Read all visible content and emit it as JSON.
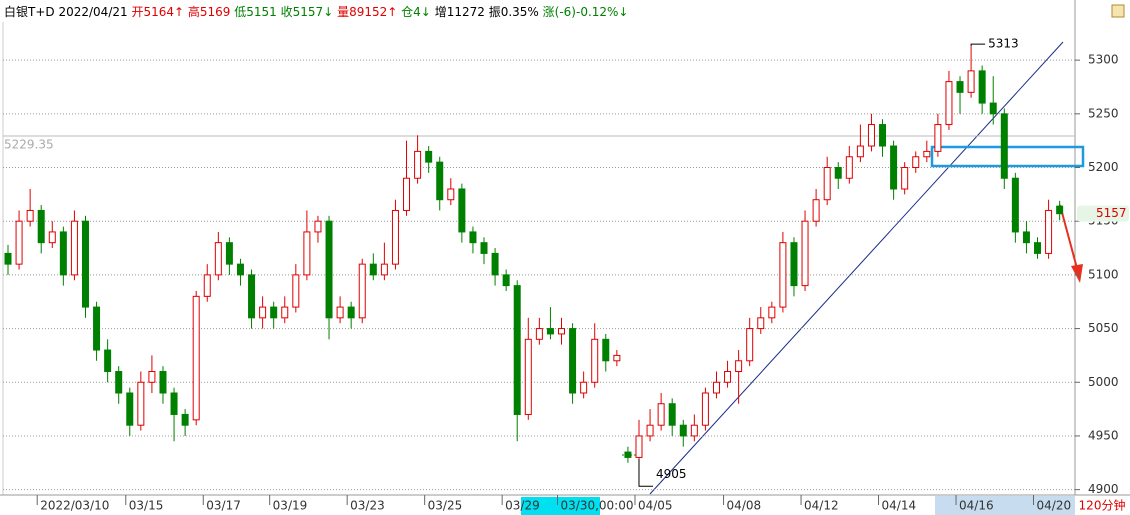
{
  "header": {
    "symbol": "白银T+D",
    "date": "2022/04/21",
    "items": [
      {
        "text": "开5164↑",
        "color": "#e00000"
      },
      {
        "text": "高5169",
        "color": "#e00000"
      },
      {
        "text": "低5151",
        "color": "#008000"
      },
      {
        "text": "收5157↓",
        "color": "#008000"
      },
      {
        "text": "量89152↑",
        "color": "#e00000"
      },
      {
        "text": "仓4↓",
        "color": "#008000"
      },
      {
        "text": "增11272",
        "color": "#000000"
      },
      {
        "text": "振0.35%",
        "color": "#000000"
      },
      {
        "text": "涨(-6)-0.12%↓",
        "color": "#008000"
      }
    ]
  },
  "chart_data": {
    "type": "candlestick",
    "period": "120分钟",
    "open": [
      5120,
      5110,
      5150,
      5160,
      5130,
      5140,
      5100,
      5150,
      5070,
      5030,
      5010,
      4990,
      4960,
      5000,
      5010,
      4990,
      4970,
      4965,
      5080,
      5100,
      5130,
      5110,
      5100,
      5060,
      5070,
      5060,
      5070,
      5100,
      5140,
      5150,
      5060,
      5070,
      5060,
      5110,
      5100,
      5110,
      5160,
      5190,
      5215,
      5205,
      5170,
      5180,
      5140,
      5130,
      5120,
      5100,
      5090,
      4970,
      5040,
      5050,
      5045,
      5050,
      4990,
      5000,
      5040,
      5020,
      4935,
      4930,
      4950,
      4960,
      4980,
      4960,
      4950,
      4960,
      4990,
      5000,
      5010,
      5020,
      5050,
      5060,
      5070,
      5130,
      5090,
      5150,
      5170,
      5200,
      5190,
      5210,
      5220,
      5240,
      5220,
      5180,
      5200,
      5210,
      5215,
      5240,
      5280,
      5270,
      5290,
      5260,
      5250,
      5190,
      5140,
      5130,
      5120,
      5164
    ],
    "high": [
      5128,
      5160,
      5180,
      5165,
      5150,
      5145,
      5160,
      5155,
      5075,
      5040,
      5015,
      4995,
      5010,
      5025,
      5015,
      4995,
      4975,
      5085,
      5110,
      5140,
      5135,
      5115,
      5105,
      5080,
      5075,
      5080,
      5110,
      5160,
      5155,
      5155,
      5080,
      5075,
      5115,
      5120,
      5130,
      5170,
      5225,
      5230,
      5220,
      5210,
      5190,
      5185,
      5145,
      5135,
      5125,
      5105,
      5095,
      5060,
      5060,
      5070,
      5060,
      5055,
      5010,
      5055,
      5045,
      5030,
      4940,
      4965,
      4975,
      4990,
      4985,
      4965,
      4970,
      4995,
      5010,
      5020,
      5030,
      5060,
      5070,
      5075,
      5140,
      5135,
      5160,
      5180,
      5210,
      5205,
      5220,
      5240,
      5250,
      5245,
      5225,
      5205,
      5215,
      5225,
      5250,
      5290,
      5285,
      5313,
      5295,
      5285,
      5255,
      5195,
      5150,
      5135,
      5170,
      5169
    ],
    "low": [
      5100,
      5105,
      5145,
      5120,
      5125,
      5090,
      5095,
      5060,
      5020,
      5000,
      4980,
      4950,
      4955,
      4990,
      4980,
      4945,
      4950,
      4960,
      5075,
      5095,
      5100,
      5090,
      5050,
      5050,
      5050,
      5055,
      5065,
      5095,
      5130,
      5040,
      5055,
      5050,
      5055,
      5095,
      5095,
      5105,
      5155,
      5185,
      5195,
      5160,
      5165,
      5130,
      5120,
      5110,
      5090,
      5085,
      4945,
      4965,
      5035,
      5040,
      5035,
      4980,
      4985,
      4995,
      5010,
      5015,
      4925,
      4905,
      4945,
      4955,
      4950,
      4940,
      4945,
      4955,
      4985,
      4995,
      4980,
      5015,
      5045,
      5055,
      5065,
      5080,
      5085,
      5145,
      5165,
      5180,
      5185,
      5205,
      5215,
      5210,
      5170,
      5175,
      5195,
      5205,
      5210,
      5235,
      5250,
      5265,
      5250,
      5240,
      5180,
      5130,
      5120,
      5115,
      5115,
      5151
    ],
    "close": [
      5110,
      5150,
      5160,
      5130,
      5140,
      5100,
      5150,
      5070,
      5030,
      5010,
      4990,
      4960,
      5000,
      5010,
      4990,
      4970,
      4960,
      5080,
      5100,
      5130,
      5110,
      5100,
      5060,
      5070,
      5060,
      5070,
      5100,
      5140,
      5150,
      5060,
      5070,
      5060,
      5110,
      5100,
      5110,
      5160,
      5190,
      5215,
      5205,
      5170,
      5180,
      5140,
      5130,
      5120,
      5100,
      5090,
      4970,
      5040,
      5050,
      5045,
      5050,
      4990,
      5000,
      5040,
      5020,
      5025,
      4930,
      4950,
      4960,
      4980,
      4960,
      4950,
      4960,
      4990,
      5000,
      5010,
      5020,
      5050,
      5060,
      5070,
      5130,
      5090,
      5150,
      5170,
      5200,
      5190,
      5210,
      5220,
      5240,
      5220,
      5180,
      5200,
      5210,
      5215,
      5240,
      5280,
      5270,
      5290,
      5260,
      5250,
      5190,
      5140,
      5130,
      5120,
      5160,
      5157
    ],
    "up_color": "#e00000",
    "down_color": "#008000",
    "ylim": [
      4895,
      5356
    ],
    "yticks": [
      4900,
      4950,
      5000,
      5050,
      5100,
      5150,
      5200,
      5250,
      5300
    ],
    "grid": true,
    "xticks": [
      {
        "index": 3,
        "label": "2022/03/10"
      },
      {
        "index": 11,
        "label": "03/15"
      },
      {
        "index": 18,
        "label": "03/17"
      },
      {
        "index": 24,
        "label": "03/19"
      },
      {
        "index": 31,
        "label": "03/23"
      },
      {
        "index": 38,
        "label": "03/25"
      },
      {
        "index": 45,
        "label": "03/29"
      },
      {
        "index": 50,
        "label": "03/30,00:00"
      },
      {
        "index": 57,
        "label": "04/05"
      },
      {
        "index": 65,
        "label": "04/08"
      },
      {
        "index": 72,
        "label": "04/12"
      },
      {
        "index": 79,
        "label": "04/14"
      },
      {
        "index": 86,
        "label": "04/16"
      },
      {
        "index": 93,
        "label": "04/20"
      }
    ],
    "reference": {
      "value": 5229.35,
      "label": "5229.35"
    },
    "max_index": 87,
    "min_index": 57,
    "last_index": 95
  }
}
